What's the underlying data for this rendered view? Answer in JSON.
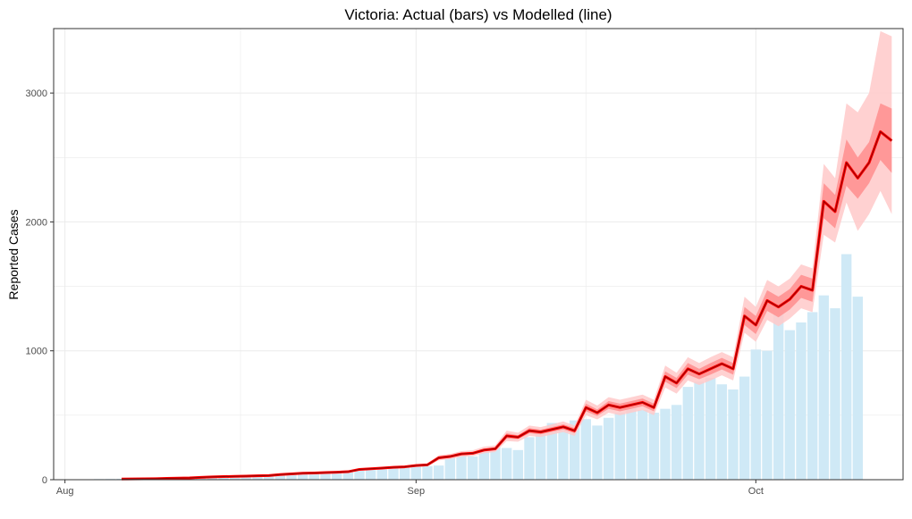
{
  "chart_data": {
    "type": "bar",
    "title": "Victoria: Actual (bars) vs Modelled (line)",
    "xlabel": "",
    "ylabel": "Reported Cases",
    "x_axis": {
      "type": "date",
      "min": "2021-07-31",
      "max": "2021-10-14",
      "ticks": [
        {
          "date": "2021-08-01",
          "label": "Aug"
        },
        {
          "date": "2021-09-01",
          "label": "Sep"
        },
        {
          "date": "2021-10-01",
          "label": "Oct"
        }
      ]
    },
    "y_axis": {
      "min": 0,
      "max": 3500,
      "ticks": [
        0,
        1000,
        2000,
        3000
      ]
    },
    "grid": true,
    "legend": "none",
    "colors": {
      "bars": "#cfe9f6",
      "model_line": "#ff0000",
      "model_line_inner": "#8b0000",
      "band_outer": "#ffc9c9",
      "band_inner": "#ff8e8e",
      "grid": "#ebebeb",
      "panel_border": "#333333"
    },
    "actual_cases": {
      "start_date": "2021-08-04",
      "values": [
        5,
        6,
        7,
        8,
        5,
        6,
        9,
        11,
        15,
        16,
        20,
        22,
        23,
        24,
        25,
        24,
        31,
        42,
        52,
        50,
        55,
        60,
        58,
        70,
        75,
        80,
        92,
        96,
        99,
        105,
        110,
        175,
        210,
        180,
        220,
        250,
        246,
        230,
        330,
        380,
        440,
        410,
        460,
        470,
        420,
        480,
        520,
        560,
        540,
        520,
        550,
        580,
        720,
        760,
        790,
        740,
        700,
        800,
        1010,
        1000,
        1430,
        1160,
        1220,
        1300,
        1430,
        1330,
        1750,
        1420
      ]
    },
    "modelled_cases": {
      "start_date": "2021-08-06",
      "median": [
        5,
        6,
        7,
        8,
        10,
        12,
        14,
        18,
        22,
        24,
        26,
        28,
        30,
        32,
        40,
        45,
        50,
        52,
        55,
        58,
        62,
        80,
        85,
        90,
        96,
        100,
        110,
        115,
        170,
        180,
        200,
        205,
        230,
        240,
        340,
        330,
        380,
        370,
        390,
        410,
        380,
        560,
        520,
        580,
        560,
        580,
        600,
        560,
        800,
        750,
        860,
        820,
        860,
        900,
        860,
        1270,
        1200,
        1390,
        1340,
        1400,
        1500,
        1470,
        2160,
        2080,
        2460,
        2340,
        2460,
        2700,
        2630
      ],
      "lower_50": [
        5,
        6,
        7,
        8,
        10,
        11,
        13,
        17,
        21,
        23,
        25,
        27,
        29,
        31,
        38,
        43,
        48,
        50,
        52,
        55,
        59,
        77,
        82,
        86,
        92,
        96,
        105,
        110,
        160,
        170,
        190,
        195,
        218,
        228,
        320,
        315,
        360,
        352,
        372,
        390,
        360,
        530,
        495,
        550,
        530,
        550,
        570,
        530,
        760,
        710,
        815,
        780,
        815,
        855,
        815,
        1200,
        1130,
        1310,
        1260,
        1320,
        1410,
        1380,
        2030,
        1950,
        2280,
        2180,
        2300,
        2480,
        2380
      ],
      "upper_50": [
        5,
        7,
        8,
        9,
        11,
        13,
        15,
        19,
        23,
        25,
        27,
        29,
        31,
        34,
        42,
        47,
        52,
        54,
        58,
        61,
        65,
        83,
        88,
        94,
        100,
        104,
        115,
        120,
        180,
        190,
        210,
        215,
        242,
        252,
        360,
        345,
        400,
        388,
        408,
        430,
        400,
        590,
        545,
        610,
        590,
        610,
        630,
        590,
        840,
        790,
        905,
        860,
        905,
        945,
        905,
        1340,
        1270,
        1470,
        1420,
        1480,
        1590,
        1560,
        2300,
        2210,
        2640,
        2500,
        2620,
        2920,
        2880
      ],
      "lower_90": [
        4,
        5,
        6,
        7,
        8,
        10,
        12,
        15,
        19,
        21,
        23,
        25,
        27,
        29,
        35,
        40,
        45,
        47,
        49,
        52,
        56,
        73,
        78,
        82,
        88,
        92,
        100,
        105,
        150,
        160,
        178,
        183,
        205,
        215,
        300,
        295,
        340,
        332,
        350,
        370,
        340,
        500,
        468,
        520,
        500,
        520,
        540,
        500,
        715,
        668,
        770,
        735,
        770,
        810,
        770,
        1140,
        1070,
        1240,
        1190,
        1250,
        1330,
        1300,
        1900,
        1840,
        2150,
        1930,
        2060,
        2240,
        2060
      ],
      "upper_90": [
        6,
        7,
        8,
        9,
        12,
        14,
        16,
        21,
        25,
        27,
        29,
        31,
        33,
        36,
        45,
        50,
        55,
        57,
        61,
        64,
        68,
        87,
        92,
        98,
        104,
        108,
        120,
        126,
        190,
        200,
        222,
        228,
        256,
        266,
        380,
        365,
        420,
        408,
        430,
        452,
        420,
        620,
        575,
        640,
        620,
        640,
        660,
        620,
        885,
        830,
        950,
        905,
        950,
        990,
        950,
        1420,
        1340,
        1550,
        1500,
        1560,
        1670,
        1640,
        2450,
        2340,
        2920,
        2850,
        3000,
        3480,
        3440
      ]
    }
  }
}
